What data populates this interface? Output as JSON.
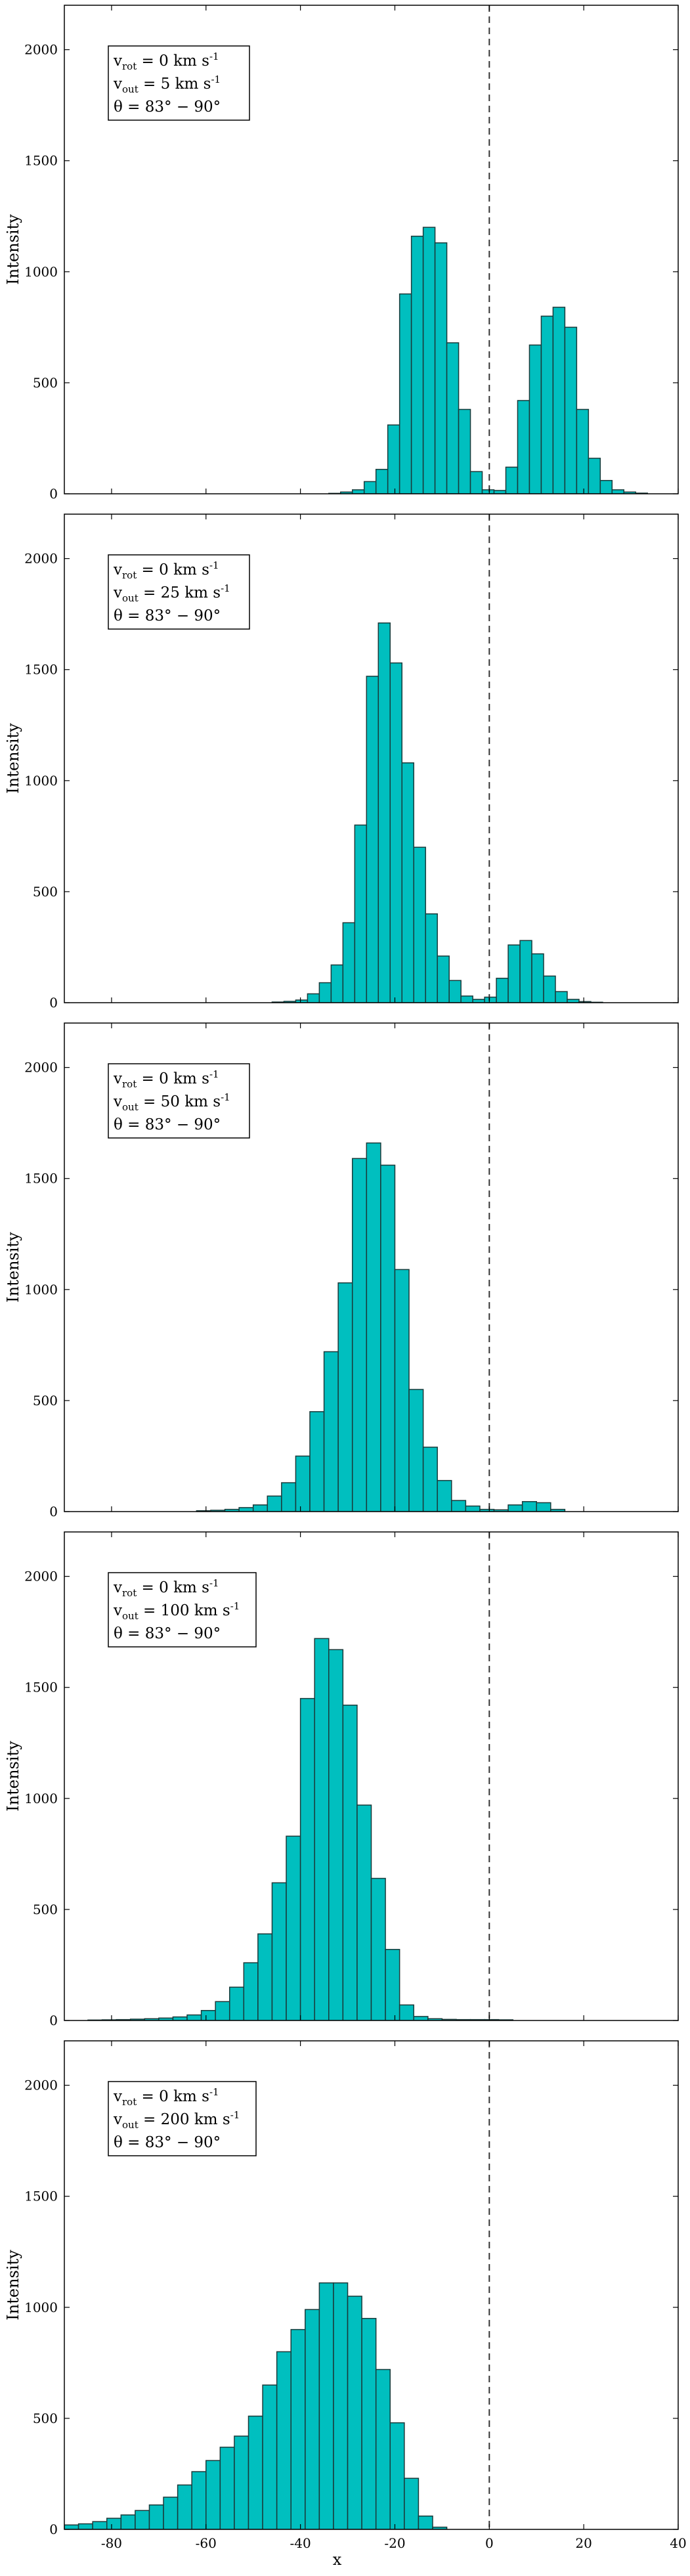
{
  "chart_data": [
    {
      "type": "histogram",
      "ylabel": "Intensity",
      "xlabel": "",
      "xlim": [
        -90,
        40
      ],
      "ylim": [
        0,
        2200
      ],
      "yticks": [
        0,
        500,
        1000,
        1500,
        2000
      ],
      "xticks": [],
      "bar_color": "#00BFBF",
      "reference_line_x": 0,
      "annotation": [
        "v_rot = 0 km s^-1",
        "v_out = 5 km s^-1",
        "θ = 83° − 90°"
      ],
      "bins": {
        "start": -34,
        "width": 2.5
      },
      "values": [
        2,
        8,
        18,
        55,
        110,
        310,
        900,
        1160,
        1200,
        1130,
        680,
        380,
        100,
        18,
        15,
        120,
        420,
        670,
        800,
        840,
        750,
        380,
        160,
        60,
        18,
        8,
        3
      ]
    },
    {
      "type": "histogram",
      "ylabel": "Intensity",
      "xlabel": "",
      "xlim": [
        -90,
        40
      ],
      "ylim": [
        0,
        2200
      ],
      "yticks": [
        0,
        500,
        1000,
        1500,
        2000
      ],
      "xticks": [],
      "bar_color": "#00BFBF",
      "reference_line_x": 0,
      "annotation": [
        "v_rot = 0 km s^-1",
        "v_out = 25 km s^-1",
        "θ = 83° − 90°"
      ],
      "bins": {
        "start": -46,
        "width": 2.5
      },
      "values": [
        3,
        6,
        12,
        40,
        90,
        170,
        360,
        800,
        1470,
        1710,
        1530,
        1080,
        700,
        400,
        210,
        100,
        30,
        15,
        25,
        110,
        260,
        280,
        220,
        120,
        50,
        15,
        5,
        2
      ]
    },
    {
      "type": "histogram",
      "ylabel": "Intensity",
      "xlabel": "",
      "xlim": [
        -90,
        40
      ],
      "ylim": [
        0,
        2200
      ],
      "yticks": [
        0,
        500,
        1000,
        1500,
        2000
      ],
      "xticks": [],
      "bar_color": "#00BFBF",
      "reference_line_x": 0,
      "annotation": [
        "v_rot = 0 km s^-1",
        "v_out = 50 km s^-1",
        "θ = 83° − 90°"
      ],
      "bins": {
        "start": -62,
        "width": 3
      },
      "values": [
        4,
        6,
        10,
        18,
        30,
        70,
        130,
        250,
        450,
        720,
        1030,
        1590,
        1660,
        1560,
        1090,
        550,
        290,
        140,
        50,
        25,
        10,
        8,
        30,
        45,
        40,
        10
      ]
    },
    {
      "type": "histogram",
      "ylabel": "Intensity",
      "xlabel": "",
      "xlim": [
        -90,
        40
      ],
      "ylim": [
        0,
        2200
      ],
      "yticks": [
        0,
        500,
        1000,
        1500,
        2000
      ],
      "xticks": [],
      "bar_color": "#00BFBF",
      "reference_line_x": 0,
      "annotation": [
        "v_rot = 0 km s^-1",
        "v_out = 100 km s^-1",
        "θ = 83° − 90°"
      ],
      "bins": {
        "start": -85,
        "width": 3
      },
      "values": [
        2,
        3,
        4,
        6,
        8,
        11,
        16,
        25,
        45,
        85,
        150,
        260,
        390,
        620,
        830,
        1450,
        1720,
        1670,
        1420,
        970,
        640,
        320,
        70,
        18,
        8,
        5,
        4,
        4,
        4,
        3
      ]
    },
    {
      "type": "histogram",
      "ylabel": "Intensity",
      "xlabel": "x",
      "xlim": [
        -90,
        40
      ],
      "ylim": [
        0,
        2200
      ],
      "yticks": [
        0,
        500,
        1000,
        1500,
        2000
      ],
      "xticks": [
        -80,
        -60,
        -40,
        -20,
        0,
        20,
        40
      ],
      "bar_color": "#00BFBF",
      "reference_line_x": 0,
      "annotation": [
        "v_rot = 0 km s^-1",
        "v_out = 200 km s^-1",
        "θ = 83° − 90°"
      ],
      "bins": {
        "start": -90,
        "width": 3
      },
      "values": [
        20,
        25,
        35,
        50,
        65,
        85,
        110,
        145,
        200,
        260,
        310,
        370,
        420,
        510,
        650,
        800,
        900,
        990,
        1110,
        1110,
        1050,
        950,
        720,
        480,
        230,
        60,
        10
      ]
    }
  ]
}
